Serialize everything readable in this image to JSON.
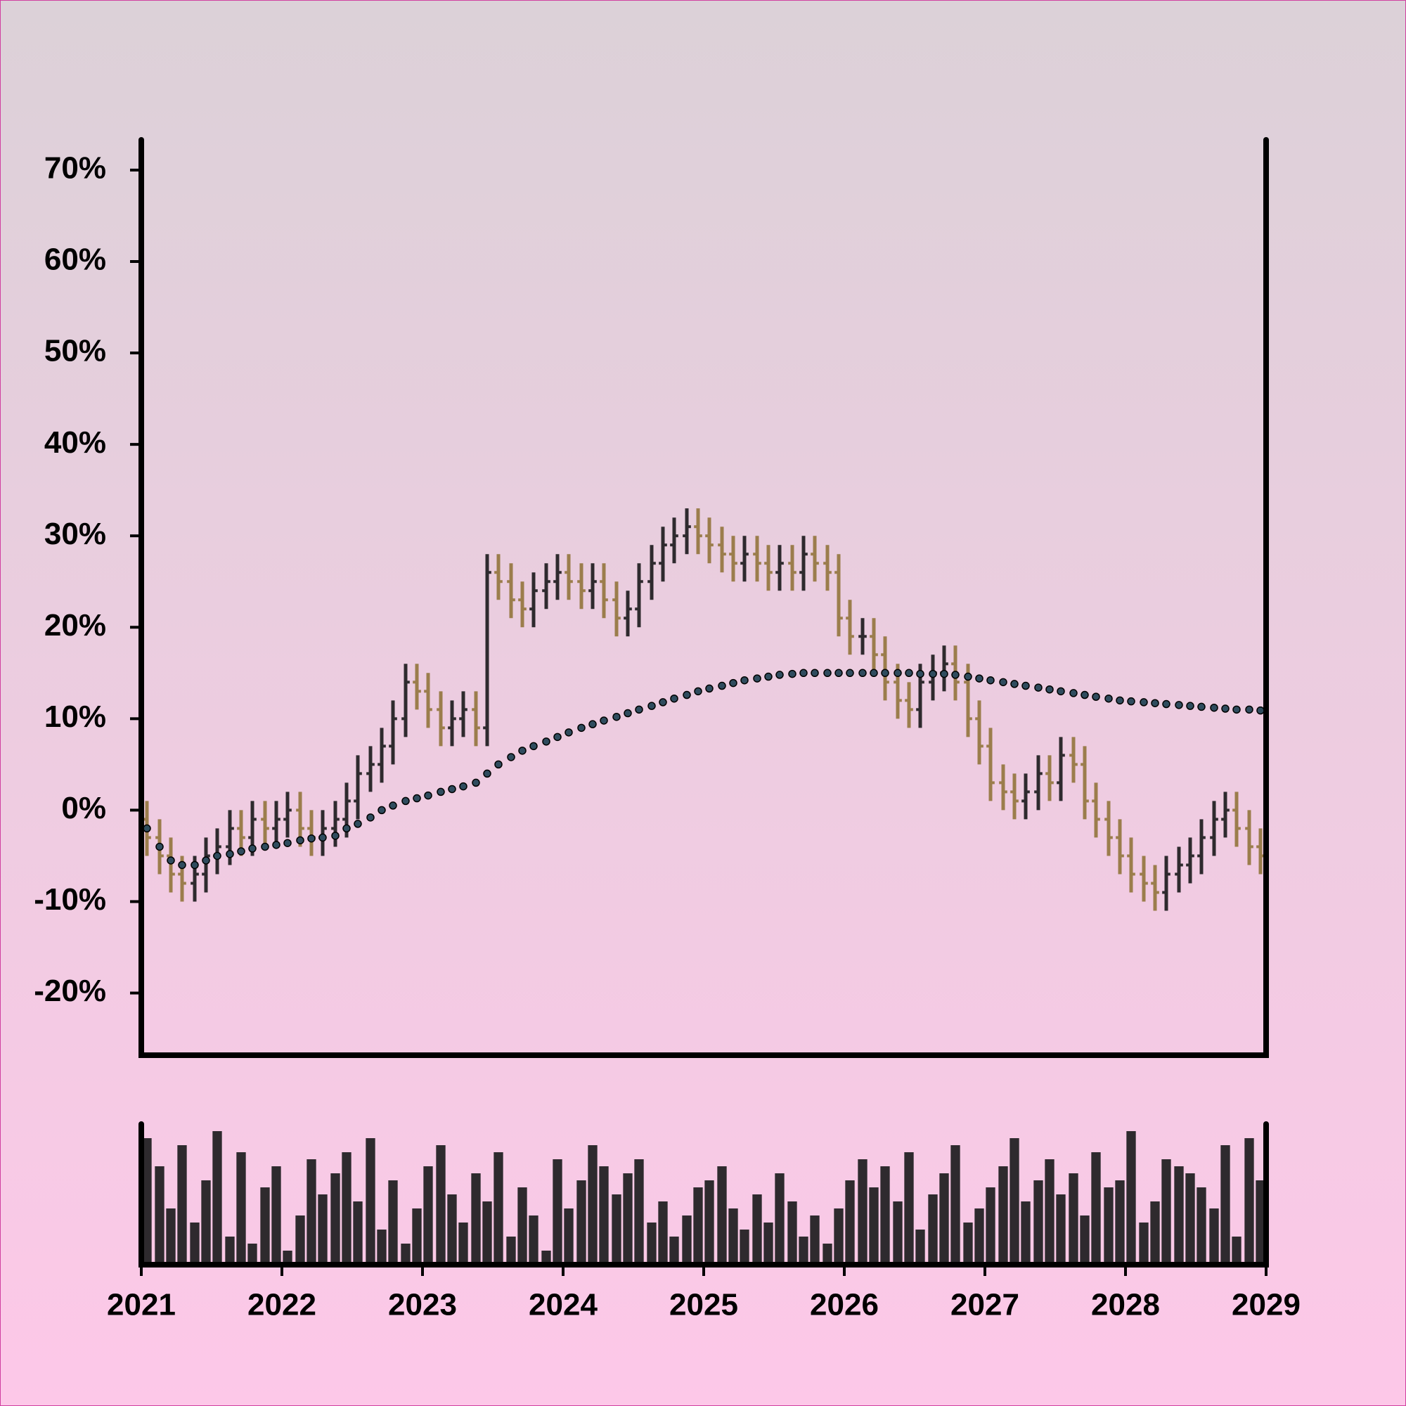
{
  "chart_data": {
    "type": "ohlc",
    "x": [
      2021.04,
      2021.13,
      2021.21,
      2021.29,
      2021.38,
      2021.46,
      2021.54,
      2021.63,
      2021.71,
      2021.79,
      2021.88,
      2021.96,
      2022.04,
      2022.13,
      2022.21,
      2022.29,
      2022.38,
      2022.46,
      2022.54,
      2022.63,
      2022.71,
      2022.79,
      2022.88,
      2022.96,
      2023.04,
      2023.13,
      2023.21,
      2023.29,
      2023.38,
      2023.46,
      2023.54,
      2023.63,
      2023.71,
      2023.79,
      2023.88,
      2023.96,
      2024.04,
      2024.13,
      2024.21,
      2024.29,
      2024.38,
      2024.46,
      2024.54,
      2024.63,
      2024.71,
      2024.79,
      2024.88,
      2024.96,
      2025.04,
      2025.13,
      2025.21,
      2025.29,
      2025.38,
      2025.46,
      2025.54,
      2025.63,
      2025.71,
      2025.79,
      2025.88,
      2025.96,
      2026.04,
      2026.13,
      2026.21,
      2026.29,
      2026.38,
      2026.46,
      2026.54,
      2026.63,
      2026.71,
      2026.79,
      2026.88,
      2026.96,
      2027.04,
      2027.13,
      2027.21,
      2027.29,
      2027.38,
      2027.46,
      2027.54,
      2027.63,
      2027.71,
      2027.79,
      2027.88,
      2027.96,
      2028.04,
      2028.13,
      2028.21,
      2028.29,
      2028.38,
      2028.46,
      2028.54,
      2028.63,
      2028.71,
      2028.79,
      2028.88,
      2028.96
    ],
    "open": [
      -1,
      -3,
      -5,
      -7,
      -8,
      -7,
      -5,
      -4,
      -2,
      -3,
      -1,
      -2,
      -1,
      0,
      -2,
      -3,
      -2,
      -1,
      1,
      4,
      5,
      7,
      10,
      14,
      13,
      11,
      9,
      10,
      11,
      9,
      26,
      25,
      23,
      22,
      24,
      25,
      26,
      25,
      24,
      25,
      23,
      21,
      22,
      25,
      27,
      29,
      30,
      31,
      30,
      29,
      28,
      27,
      28,
      27,
      26,
      27,
      26,
      28,
      27,
      26,
      21,
      19,
      19,
      17,
      14,
      12,
      11,
      14,
      15,
      16,
      14,
      10,
      7,
      3,
      2,
      1,
      2,
      4,
      3,
      6,
      5,
      1,
      -1,
      -3,
      -5,
      -7,
      -8,
      -9,
      -7,
      -6,
      -5,
      -3,
      -1,
      0,
      -2,
      -4
    ],
    "high": [
      1,
      -1,
      -3,
      -5,
      -5,
      -3,
      -2,
      0,
      0,
      1,
      1,
      1,
      2,
      2,
      0,
      0,
      1,
      3,
      6,
      7,
      9,
      12,
      16,
      16,
      15,
      13,
      12,
      13,
      13,
      28,
      28,
      27,
      25,
      26,
      27,
      28,
      28,
      27,
      27,
      27,
      25,
      24,
      27,
      29,
      31,
      32,
      33,
      33,
      32,
      31,
      30,
      30,
      30,
      29,
      29,
      29,
      30,
      30,
      29,
      28,
      23,
      21,
      21,
      19,
      16,
      14,
      16,
      17,
      18,
      18,
      16,
      12,
      9,
      5,
      4,
      4,
      6,
      6,
      8,
      8,
      7,
      3,
      1,
      -1,
      -3,
      -5,
      -6,
      -5,
      -4,
      -3,
      -1,
      1,
      2,
      2,
      0,
      -2
    ],
    "low": [
      -5,
      -7,
      -9,
      -10,
      -10,
      -9,
      -7,
      -6,
      -5,
      -5,
      -4,
      -4,
      -3,
      -4,
      -5,
      -5,
      -4,
      -3,
      -1,
      2,
      3,
      5,
      8,
      11,
      9,
      7,
      7,
      8,
      7,
      7,
      23,
      21,
      20,
      20,
      22,
      23,
      23,
      22,
      22,
      21,
      19,
      19,
      20,
      23,
      25,
      27,
      28,
      28,
      27,
      26,
      25,
      25,
      25,
      24,
      24,
      24,
      24,
      25,
      24,
      19,
      17,
      17,
      15,
      12,
      10,
      9,
      9,
      12,
      13,
      12,
      8,
      5,
      1,
      0,
      -1,
      -1,
      0,
      1,
      1,
      3,
      -1,
      -3,
      -5,
      -7,
      -9,
      -10,
      -11,
      -11,
      -9,
      -8,
      -7,
      -5,
      -3,
      -4,
      -6,
      -7
    ],
    "close": [
      -3,
      -5,
      -7,
      -8,
      -7,
      -5,
      -4,
      -2,
      -3,
      -1,
      -2,
      -1,
      0,
      -2,
      -3,
      -2,
      -1,
      1,
      4,
      5,
      7,
      10,
      14,
      13,
      11,
      9,
      10,
      11,
      9,
      26,
      25,
      23,
      22,
      24,
      25,
      26,
      25,
      24,
      25,
      23,
      21,
      22,
      25,
      27,
      29,
      30,
      31,
      30,
      29,
      28,
      27,
      28,
      27,
      26,
      27,
      26,
      28,
      27,
      26,
      21,
      19,
      19,
      17,
      14,
      12,
      11,
      14,
      15,
      16,
      14,
      10,
      7,
      3,
      2,
      1,
      2,
      4,
      3,
      6,
      5,
      1,
      -1,
      -3,
      -5,
      -7,
      -8,
      -9,
      -7,
      -6,
      -5,
      -3,
      -1,
      0,
      -2,
      -4,
      -5
    ],
    "moving_average": [
      -2,
      -4,
      -5.5,
      -6,
      -6,
      -5.5,
      -5,
      -4.8,
      -4.5,
      -4.2,
      -4,
      -3.8,
      -3.6,
      -3.3,
      -3.1,
      -3,
      -2.8,
      -2,
      -1.5,
      -0.8,
      0,
      0.5,
      1,
      1.3,
      1.6,
      2,
      2.3,
      2.6,
      3,
      4,
      5,
      5.8,
      6.5,
      7,
      7.5,
      8,
      8.5,
      9,
      9.4,
      9.8,
      10.2,
      10.6,
      11,
      11.4,
      11.8,
      12.2,
      12.6,
      13,
      13.3,
      13.6,
      13.9,
      14.2,
      14.4,
      14.6,
      14.8,
      14.9,
      15,
      15,
      15,
      15,
      15,
      15,
      15,
      15,
      15,
      15,
      14.9,
      14.9,
      14.9,
      14.8,
      14.6,
      14.4,
      14.2,
      14,
      13.8,
      13.6,
      13.4,
      13.2,
      13,
      12.8,
      12.6,
      12.4,
      12.2,
      12,
      11.9,
      11.8,
      11.7,
      11.6,
      11.5,
      11.4,
      11.3,
      11.2,
      11.1,
      11,
      11,
      10.9
    ],
    "volume": [
      90,
      70,
      40,
      85,
      30,
      60,
      95,
      20,
      80,
      15,
      55,
      70,
      10,
      35,
      75,
      50,
      65,
      80,
      45,
      90,
      25,
      60,
      15,
      40,
      70,
      85,
      50,
      30,
      65,
      45,
      80,
      20,
      55,
      35,
      10,
      75,
      40,
      60,
      85,
      70,
      50,
      65,
      75,
      30,
      45,
      20,
      35,
      55,
      60,
      70,
      40,
      25,
      50,
      30,
      65,
      45,
      20,
      35,
      15,
      40,
      60,
      75,
      55,
      70,
      45,
      80,
      25,
      50,
      65,
      85,
      30,
      40,
      55,
      70,
      90,
      45,
      60,
      75,
      50,
      65,
      35,
      80,
      55,
      60,
      95,
      30,
      45,
      75,
      70,
      65,
      55,
      40,
      85,
      20,
      90,
      60
    ],
    "up_color": "#2e2a2e",
    "down_color": "#9b7d4c",
    "ma_color": "#2f4c5e",
    "volume_color": "#2e2a2e",
    "xlim": [
      2021,
      2029
    ],
    "xticks": [
      2021,
      2022,
      2023,
      2024,
      2025,
      2026,
      2027,
      2028,
      2029
    ],
    "ylim": [
      -26.8,
      73.3
    ],
    "yticks": [
      {
        "value": -20,
        "label": "-20%"
      },
      {
        "value": -10,
        "label": "-10%"
      },
      {
        "value": 0,
        "label": "0%"
      },
      {
        "value": 10,
        "label": "10%"
      },
      {
        "value": 20,
        "label": "20%"
      },
      {
        "value": 30,
        "label": "30%"
      },
      {
        "value": 40,
        "label": "40%"
      },
      {
        "value": 50,
        "label": "50%"
      },
      {
        "value": 60,
        "label": "60%"
      },
      {
        "value": 70,
        "label": "70%"
      }
    ],
    "volume_lim": [
      0,
      100
    ]
  }
}
